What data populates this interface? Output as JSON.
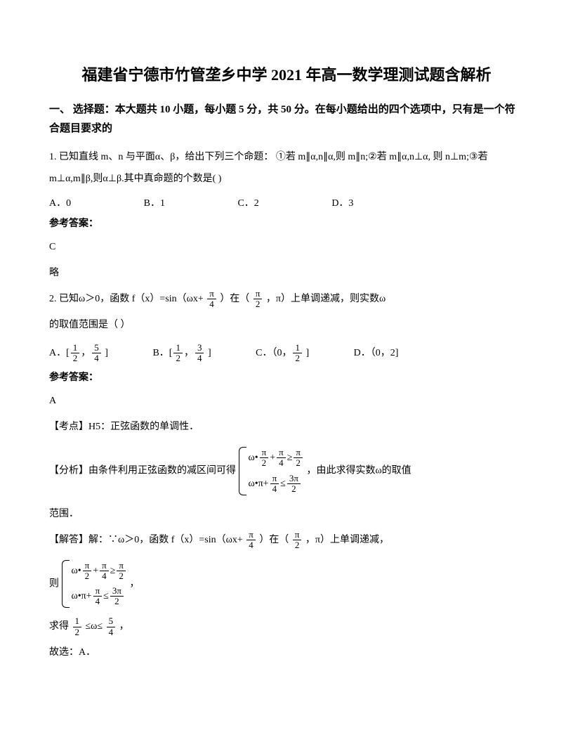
{
  "title": "福建省宁德市竹管垄乡中学 2021 年高一数学理测试题含解析",
  "section1": "一、 选择题：本大题共 10 小题，每小题 5 分，共 50 分。在每小题给出的四个选项中，只有是一个符合题目要求的",
  "q1": {
    "stem": "1. 已知直线 m、n 与平面α、β，给出下列三个命题：  ①若 m∥α,n∥α,则 m∥n;②若 m∥α,n⊥α, 则 n⊥m;③若 m⊥α,m∥β,则α⊥β.其中真命题的个数是(        )",
    "optA": "A．0",
    "optB": "B．1",
    "optC": "C．2",
    "optD": "D．3",
    "answerLabel": "参考答案：",
    "answer": "C",
    "note": "略"
  },
  "q2": {
    "stem_a": "2. 已知ω＞0，函数 f（x）=sin（ωx+ ",
    "stem_b": " ）在（",
    "stem_c": " ，π）上单调递减，则实数ω",
    "stem_d": "的取值范围是（   ）",
    "pi4_num": "π",
    "pi4_den": "4",
    "pi2_num": "π",
    "pi2_den": "2",
    "optA_a": "A．[",
    "optA_b": "，",
    "optA_c": " ]",
    "f12_num": "1",
    "f12_den": "2",
    "f54_num": "5",
    "f54_den": "4",
    "optB_a": "B．[",
    "optB_b": "，",
    "optB_c": " ]",
    "f34_num": "3",
    "f34_den": "4",
    "optC_a": "C．（0，",
    "optC_b": " ]",
    "optD": "D．（0，2]",
    "answerLabel": "参考答案：",
    "answer": "A",
    "kd": "【考点】H5：正弦函数的单调性．",
    "fx_a": "【分析】由条件利用正弦函数的减区间可得",
    "fx_b": "，由此求得实数ω的取值",
    "fx_c": "范围．",
    "eq1_a": "ω•",
    "eq1_b": "+",
    "eq1_c": "≥",
    "eq2_a": "ω•π+",
    "eq2_b": "≤",
    "f3pi2_num": "3π",
    "f3pi2_den": "2",
    "jd_a": "【解答】解：∵ω＞0，函数 f（x）=sin（ωx+ ",
    "jd_b": " ）在（",
    "jd_c": " ，π）上单调递减，",
    "jd_d": "则",
    "jd_e": "，",
    "res_a": "求得",
    "res_b": " ≤ω≤ ",
    "res_c": " ，",
    "final": "故选：A．"
  }
}
